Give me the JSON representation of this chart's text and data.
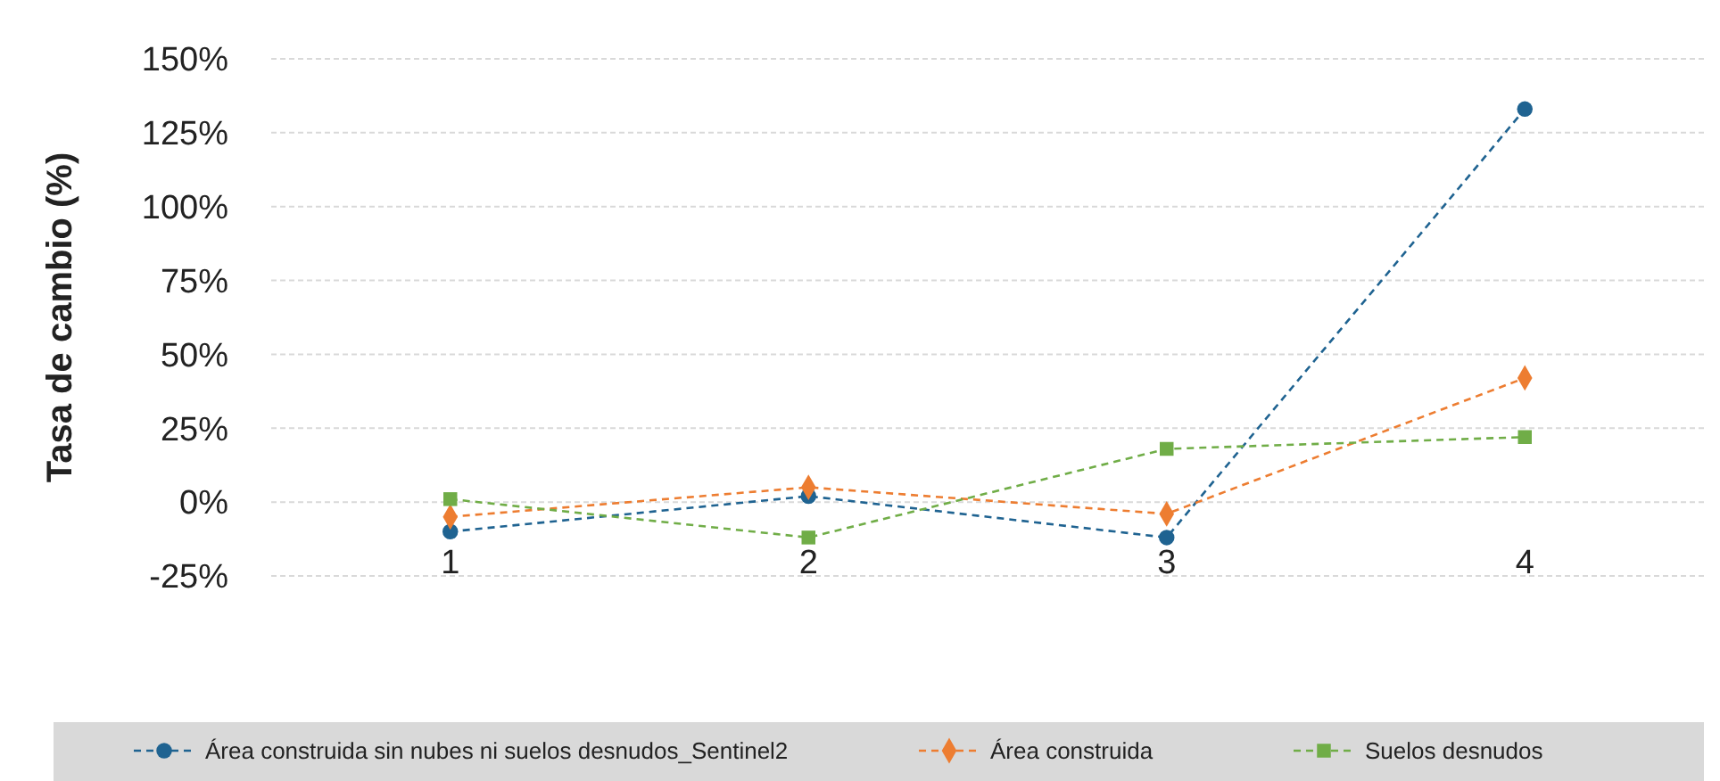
{
  "chart_data": {
    "type": "line",
    "ylabel": "Tasa de cambio (%)",
    "categories": [
      "1",
      "2",
      "3",
      "4"
    ],
    "ylim": [
      -25,
      150
    ],
    "yticks": [
      {
        "value": -25,
        "label": "-25%"
      },
      {
        "value": 0,
        "label": "0%"
      },
      {
        "value": 25,
        "label": "25%"
      },
      {
        "value": 50,
        "label": "50%"
      },
      {
        "value": 75,
        "label": "75%"
      },
      {
        "value": 100,
        "label": "100%"
      },
      {
        "value": 125,
        "label": "125%"
      },
      {
        "value": 150,
        "label": "150%"
      }
    ],
    "grid": "y",
    "legend": "bottom",
    "line_style": "dashed",
    "series": [
      {
        "name": "Área construida sin nubes ni suelos desnudos_Sentinel2",
        "color": "#1f6391",
        "marker": "circle",
        "values": [
          -10,
          2,
          -12,
          133
        ]
      },
      {
        "name": "Área construida",
        "color": "#ed7d31",
        "marker": "diamond",
        "values": [
          -5,
          5,
          -4,
          42
        ]
      },
      {
        "name": "Suelos desnudos",
        "color": "#70ad47",
        "marker": "square",
        "values": [
          1,
          -12,
          18,
          22
        ]
      }
    ]
  }
}
